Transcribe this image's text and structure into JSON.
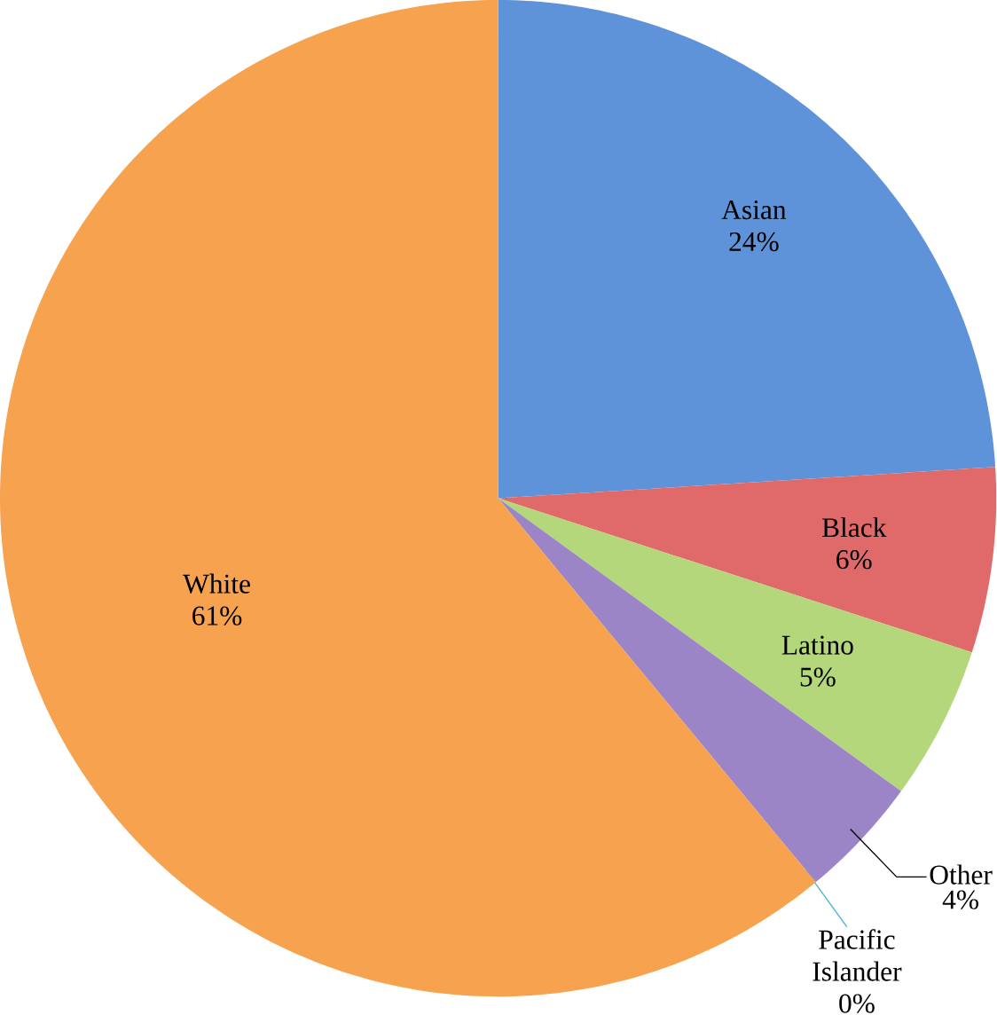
{
  "chart_data": {
    "type": "pie",
    "categories": [
      "Asian",
      "Black",
      "Latino",
      "Other",
      "Pacific Islander",
      "White"
    ],
    "values": [
      24,
      6,
      5,
      4,
      0,
      61
    ],
    "value_labels": [
      "24%",
      "6%",
      "5%",
      "4%",
      "0%",
      "61%"
    ],
    "colors": [
      "#5f93d9",
      "#e06a6a",
      "#b3d77a",
      "#9c85c6",
      "#4cb3cf",
      "#f6a24f"
    ]
  }
}
